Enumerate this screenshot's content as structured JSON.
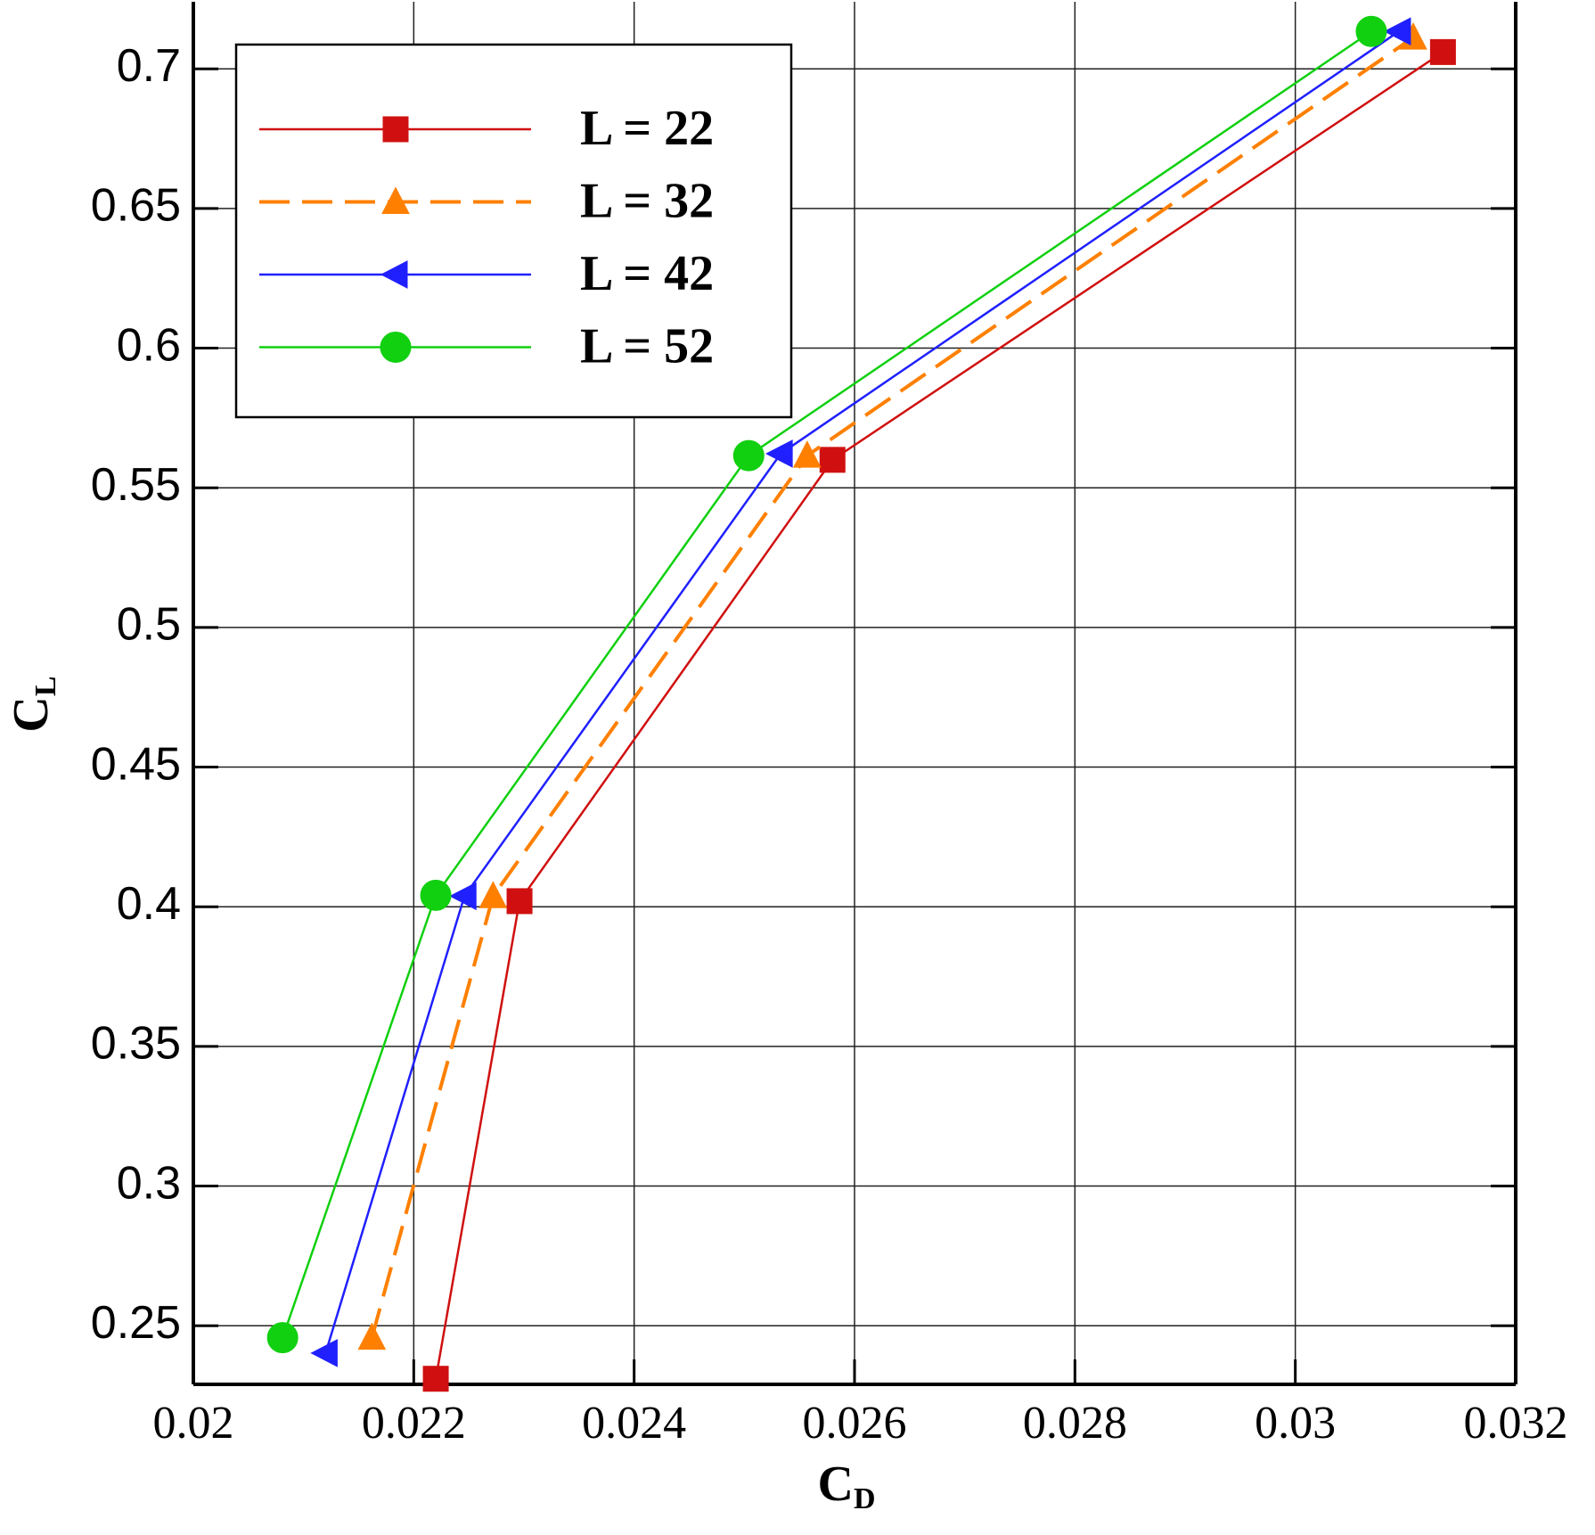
{
  "chart_data": {
    "type": "line",
    "xlabel": {
      "main": "C",
      "sub": "D"
    },
    "ylabel": {
      "main": "C",
      "sub": "L"
    },
    "xlim": [
      0.02,
      0.032
    ],
    "ylim": [
      0.229,
      0.724
    ],
    "xticks": [
      0.02,
      0.022,
      0.024,
      0.026,
      0.028,
      0.03,
      0.032
    ],
    "yticks": [
      0.25,
      0.3,
      0.35,
      0.4,
      0.45,
      0.5,
      0.55,
      0.6,
      0.65,
      0.7
    ],
    "grid": true,
    "legend": "upper left",
    "series": [
      {
        "name": "L = 22",
        "color": "#d01010",
        "marker": "square",
        "dash": false,
        "x": [
          0.0222,
          0.02296,
          0.0258,
          0.03134
        ],
        "values": [
          0.231,
          0.402,
          0.56,
          0.706
        ]
      },
      {
        "name": "L = 32",
        "color": "#ff8000",
        "marker": "triangle-up",
        "dash": true,
        "x": [
          0.02162,
          0.02272,
          0.02557,
          0.03107
        ],
        "values": [
          0.2457,
          0.4038,
          0.5615,
          0.7112
        ]
      },
      {
        "name": "L = 42",
        "color": "#2020ff",
        "marker": "triangle-left",
        "dash": false,
        "x": [
          0.0212,
          0.02246,
          0.02533,
          0.03094
        ],
        "values": [
          0.2402,
          0.4038,
          0.5622,
          0.7134
        ]
      },
      {
        "name": "L = 52",
        "color": "#10d010",
        "marker": "circle",
        "dash": false,
        "x": [
          0.02081,
          0.0222,
          0.02504,
          0.03069
        ],
        "values": [
          0.2457,
          0.4041,
          0.5615,
          0.7134
        ]
      }
    ]
  }
}
